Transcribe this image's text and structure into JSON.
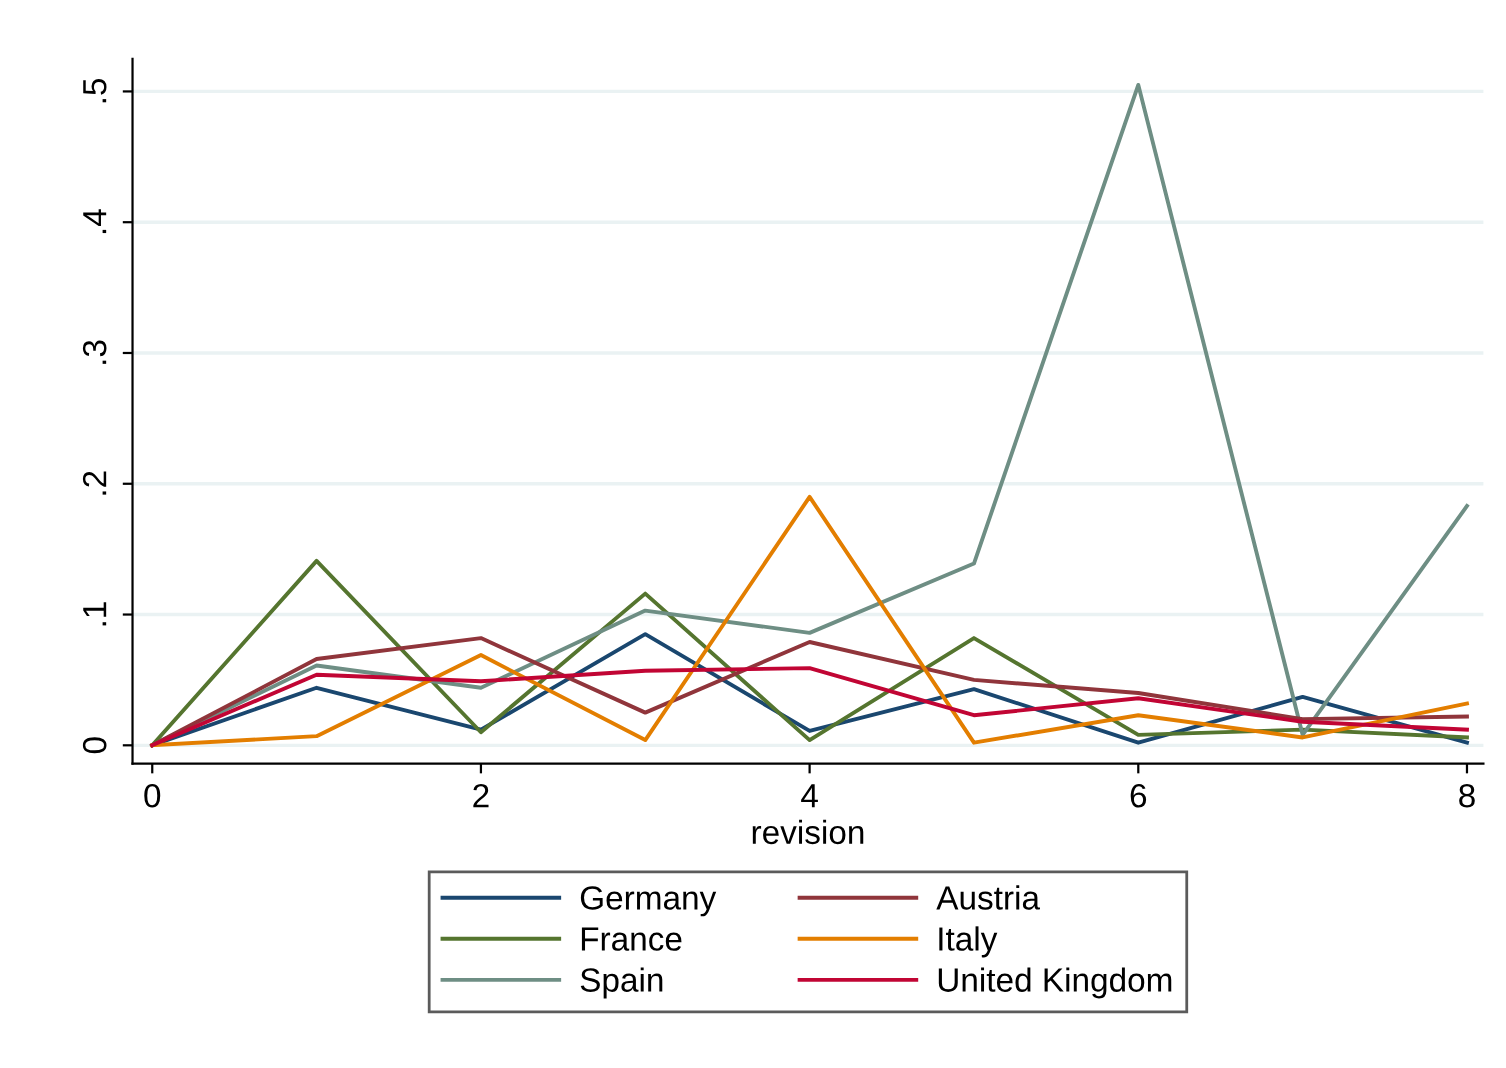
{
  "chart_data": {
    "type": "line",
    "xlabel": "revision",
    "x": [
      0,
      1,
      2,
      3,
      4,
      5,
      6,
      7,
      8
    ],
    "xlim": [
      -0.12,
      8.1
    ],
    "xticks": [
      0,
      2,
      4,
      6,
      8
    ],
    "ylim": [
      -0.014,
      0.525
    ],
    "yticks": [
      {
        "value": 0,
        "label": "0"
      },
      {
        "value": 0.1,
        "label": ".1"
      },
      {
        "value": 0.2,
        "label": ".2"
      },
      {
        "value": 0.3,
        "label": ".3"
      },
      {
        "value": 0.4,
        "label": ".4"
      },
      {
        "value": 0.5,
        "label": ".5"
      }
    ],
    "grid": "y",
    "legend": "bottom",
    "marker": "none",
    "line_style": "solid",
    "series": [
      {
        "name": "Germany",
        "color": "#1a476f",
        "values": [
          0,
          0.044,
          0.012,
          0.085,
          0.011,
          0.043,
          0.002,
          0.037,
          0.002
        ]
      },
      {
        "name": "France",
        "color": "#55752f",
        "values": [
          0,
          0.141,
          0.01,
          0.116,
          0.004,
          0.082,
          0.008,
          0.012,
          0.006
        ]
      },
      {
        "name": "Spain",
        "color": "#6e8e84",
        "values": [
          0,
          0.061,
          0.044,
          0.103,
          0.086,
          0.139,
          0.505,
          0.008,
          0.183
        ]
      },
      {
        "name": "Austria",
        "color": "#90353b",
        "values": [
          0,
          0.066,
          0.082,
          0.025,
          0.079,
          0.05,
          0.04,
          0.02,
          0.022
        ]
      },
      {
        "name": "Italy",
        "color": "#e37e00",
        "values": [
          0,
          0.007,
          0.069,
          0.004,
          0.19,
          0.002,
          0.023,
          0.006,
          0.032
        ]
      },
      {
        "name": "United Kingdom",
        "color": "#c10534",
        "values": [
          0,
          0.054,
          0.049,
          0.057,
          0.059,
          0.023,
          0.036,
          0.018,
          0.012
        ]
      }
    ]
  }
}
